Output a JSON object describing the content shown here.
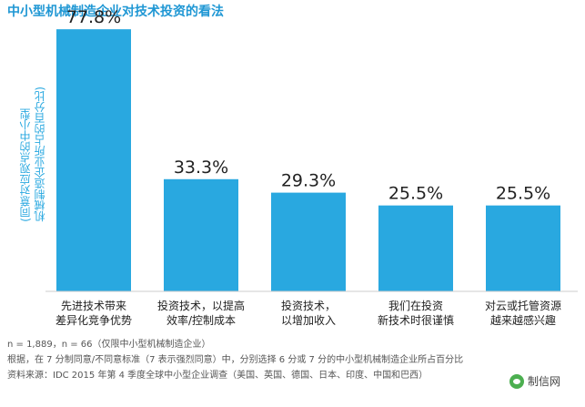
{
  "title": "中小型机械制造企业对技术投资的看法",
  "chart_data": {
    "type": "bar",
    "title": "中小型机械制造企业对技术投资的看法",
    "ylabel": "(同意对应观点的中小型\n机械制造企业所占的百分比)",
    "xlabel": "",
    "ylim": [
      0,
      80
    ],
    "grid": false,
    "categories": [
      "先进技术带来\n差异化竞争优势",
      "投资技术，以提高\n效率/控制成本",
      "投资技术，\n以增加收入",
      "我们在投资\n新技术时很谨慎",
      "对云或托管资源\n越来越感兴趣"
    ],
    "values": [
      77.8,
      33.3,
      29.3,
      25.5,
      25.5
    ],
    "value_labels": [
      "77.8%",
      "33.3%",
      "29.3%",
      "25.5%",
      "25.5%"
    ],
    "bar_color": "#29a8e0"
  },
  "footnotes": [
    "n = 1,889，n = 66（仅限中小型机械制造企业）",
    "根据，在 7 分制同意/不同意标准（7 表示强烈同意）中，分别选择 6 分或 7 分的中小型机械制造企业所占百分比",
    "资料来源：IDC 2015 年第 4 季度全球中小型企业调查（美国、英国、德国、日本、印度、中国和巴西）"
  ],
  "watermark": "制信网"
}
